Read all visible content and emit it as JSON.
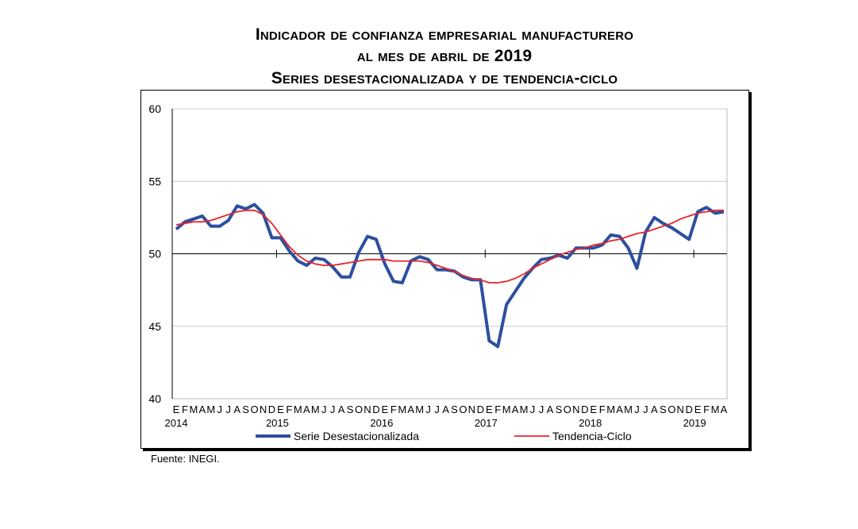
{
  "chart_data": {
    "type": "line",
    "title": [
      "Indicador de confianza empresarial manufacturero",
      "al mes de abril de 2019",
      "Series desestacionalizada y de tendencia-ciclo"
    ],
    "xlabel": "",
    "ylabel": "",
    "ylim": [
      40,
      60
    ],
    "yticks": [
      40,
      45,
      50,
      55,
      60
    ],
    "grid": true,
    "legend_position": "bottom",
    "month_labels": [
      "E",
      "F",
      "M",
      "A",
      "M",
      "J",
      "J",
      "A",
      "S",
      "O",
      "N",
      "D"
    ],
    "year_labels": [
      "2014",
      "2015",
      "2016",
      "2017",
      "2018",
      "2019"
    ],
    "x_start": "2014-01",
    "x_end": "2019-04",
    "series": [
      {
        "name": "Serie Desestacionalizada",
        "color": "#2E4F9E",
        "values": [
          51.7,
          52.2,
          52.4,
          52.6,
          51.9,
          51.9,
          52.3,
          53.3,
          53.1,
          53.4,
          52.8,
          51.1,
          51.1,
          50.2,
          49.5,
          49.2,
          49.7,
          49.6,
          49.1,
          48.4,
          48.4,
          50.1,
          51.2,
          51.0,
          49.3,
          48.1,
          48.0,
          49.5,
          49.8,
          49.6,
          48.9,
          48.9,
          48.8,
          48.4,
          48.2,
          48.2,
          44.0,
          43.6,
          46.5,
          47.4,
          48.3,
          49.0,
          49.6,
          49.7,
          49.9,
          49.7,
          50.4,
          50.4,
          50.4,
          50.6,
          51.3,
          51.2,
          50.4,
          49.0,
          51.5,
          52.5,
          52.1,
          51.8,
          51.4,
          51.0,
          52.9,
          53.2,
          52.8,
          52.9
        ]
      },
      {
        "name": "Tendencia-Ciclo",
        "color": "#E8232A",
        "values": [
          52.0,
          52.1,
          52.2,
          52.2,
          52.3,
          52.5,
          52.7,
          52.9,
          53.0,
          53.0,
          52.7,
          52.1,
          51.3,
          50.5,
          49.9,
          49.5,
          49.3,
          49.2,
          49.2,
          49.3,
          49.4,
          49.5,
          49.6,
          49.6,
          49.6,
          49.5,
          49.5,
          49.5,
          49.5,
          49.4,
          49.2,
          49.0,
          48.8,
          48.5,
          48.3,
          48.2,
          48.0,
          48.0,
          48.1,
          48.3,
          48.6,
          49.0,
          49.3,
          49.6,
          49.9,
          50.1,
          50.3,
          50.4,
          50.6,
          50.7,
          50.9,
          51.0,
          51.2,
          51.4,
          51.5,
          51.7,
          51.9,
          52.1,
          52.4,
          52.6,
          52.8,
          52.9,
          53.0,
          53.0
        ]
      }
    ]
  },
  "source": "Fuente: INEGI."
}
